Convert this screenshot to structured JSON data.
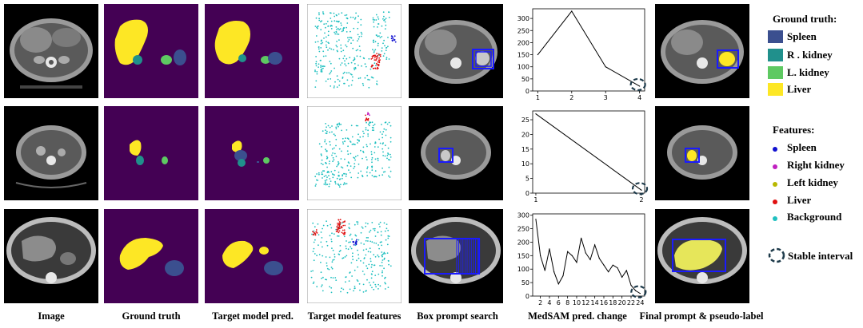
{
  "columns": [
    "Image",
    "Ground truth",
    "Target model pred.",
    "Target model features",
    "Box prompt search",
    "MedSAM pred. change",
    "Final prompt & pseudo-label"
  ],
  "legend": {
    "ground_truth_title": "Ground truth:",
    "ground_truth_items": [
      {
        "label": "Spleen",
        "color": "#3b4f8f"
      },
      {
        "label": "R . kidney",
        "color": "#20908c"
      },
      {
        "label": "L. kidney",
        "color": "#5ec962"
      },
      {
        "label": "Liver",
        "color": "#fde725"
      }
    ],
    "features_title": "Features:",
    "features_items": [
      {
        "label": "Spleen",
        "color": "#1010d0"
      },
      {
        "label": "Right kidney",
        "color": "#c020c0"
      },
      {
        "label": "Left kidney",
        "color": "#b8b800"
      },
      {
        "label": "Liver",
        "color": "#e01010"
      },
      {
        "label": "Background",
        "color": "#20c0c0"
      }
    ],
    "stable_interval_label": "Stable interval"
  },
  "colors": {
    "background_class": "#440154",
    "box_prompt": "#1a1aff"
  },
  "chart_data": [
    {
      "type": "line",
      "x": [
        1,
        2,
        3,
        4
      ],
      "y": [
        150,
        330,
        100,
        20
      ],
      "xticks": [
        1,
        2,
        3,
        4
      ],
      "yticks": [
        0,
        50,
        100,
        150,
        200,
        250,
        300
      ],
      "xlim": [
        0.85,
        4.15
      ],
      "ylim": [
        0,
        340
      ],
      "stable_interval_x": 4
    },
    {
      "type": "line",
      "x": [
        1,
        2
      ],
      "y": [
        27,
        1
      ],
      "xticks": [
        1,
        2
      ],
      "yticks": [
        0,
        5,
        10,
        15,
        20,
        25
      ],
      "xlim": [
        0.97,
        2.03
      ],
      "ylim": [
        0,
        28
      ],
      "stable_interval_x": 2
    },
    {
      "type": "line",
      "x": [
        1,
        2,
        3,
        4,
        5,
        6,
        7,
        8,
        9,
        10,
        11,
        12,
        13,
        14,
        15,
        16,
        17,
        18,
        19,
        20,
        21,
        22,
        23,
        24
      ],
      "y": [
        285,
        150,
        95,
        175,
        90,
        45,
        75,
        165,
        150,
        125,
        215,
        160,
        135,
        190,
        140,
        115,
        90,
        115,
        105,
        70,
        95,
        40,
        20,
        10
      ],
      "xticks": [
        2,
        4,
        6,
        8,
        10,
        12,
        14,
        16,
        18,
        20,
        22,
        24
      ],
      "yticks": [
        0,
        50,
        100,
        150,
        200,
        250,
        300
      ],
      "xlim": [
        0.3,
        25
      ],
      "ylim": [
        0,
        305
      ],
      "stable_interval_x": 24
    }
  ]
}
